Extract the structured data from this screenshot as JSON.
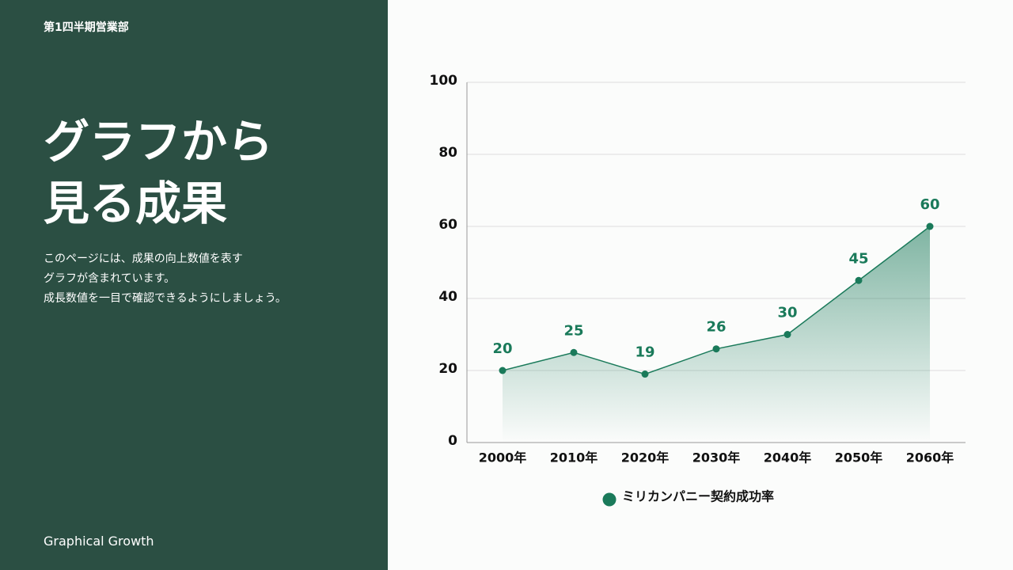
{
  "header": {
    "department": "第1四半期営業部",
    "title": [
      "グラフから",
      "見る成果"
    ],
    "description": [
      "このページには、成果の向上数値を表す",
      "グラフが含まれています。",
      "成長数値を一目で確認できるようにしましょう。"
    ],
    "footer": "Graphical Growth"
  },
  "chart_data": {
    "type": "line",
    "categories": [
      "2000年",
      "2010年",
      "2020年",
      "2030年",
      "2040年",
      "2050年",
      "2060年"
    ],
    "series": [
      {
        "name": "ミリカンパニー契約成功率",
        "color": "#1a7a5a",
        "values": [
          20,
          25,
          19,
          26,
          30,
          45,
          60
        ]
      }
    ],
    "ylim": [
      0,
      100
    ],
    "yticks": [
      0,
      20,
      40,
      60,
      80,
      100
    ],
    "grid": true,
    "area": true,
    "legend": "bottom"
  }
}
